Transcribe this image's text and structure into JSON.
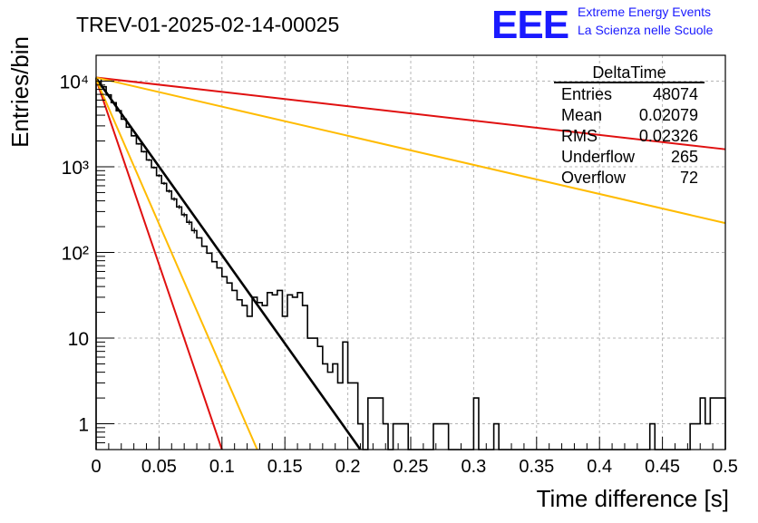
{
  "chart_data": {
    "type": "histogram",
    "title": "TREV-01-2025-02-14-00025",
    "xlabel": "Time difference [s]",
    "ylabel": "Entries/bin",
    "xlim": [
      0,
      0.5
    ],
    "ylim": [
      0.5,
      20000
    ],
    "yscale": "log",
    "grid": true,
    "x_ticks": [
      "0",
      "0.05",
      "0.1",
      "0.15",
      "0.2",
      "0.25",
      "0.3",
      "0.35",
      "0.4",
      "0.45",
      "0.5"
    ],
    "x_tick_values": [
      0,
      0.05,
      0.1,
      0.15,
      0.2,
      0.25,
      0.3,
      0.35,
      0.4,
      0.45,
      0.5
    ],
    "y_ticks": [
      "1",
      "10",
      "10²",
      "10³",
      "10⁴"
    ],
    "y_tick_values": [
      1,
      10,
      100,
      1000,
      10000
    ],
    "bin_width": 0.004,
    "bins": [
      [
        0.0,
        10800
      ],
      [
        0.004,
        8600
      ],
      [
        0.008,
        6900
      ],
      [
        0.012,
        5600
      ],
      [
        0.016,
        4500
      ],
      [
        0.02,
        3600
      ],
      [
        0.024,
        2900
      ],
      [
        0.028,
        2300
      ],
      [
        0.032,
        1850
      ],
      [
        0.036,
        1500
      ],
      [
        0.04,
        1200
      ],
      [
        0.044,
        980
      ],
      [
        0.048,
        790
      ],
      [
        0.052,
        640
      ],
      [
        0.056,
        520
      ],
      [
        0.06,
        420
      ],
      [
        0.064,
        340
      ],
      [
        0.068,
        275
      ],
      [
        0.072,
        225
      ],
      [
        0.076,
        180
      ],
      [
        0.08,
        148
      ],
      [
        0.084,
        118
      ],
      [
        0.088,
        98
      ],
      [
        0.092,
        78
      ],
      [
        0.096,
        66
      ],
      [
        0.1,
        52
      ],
      [
        0.104,
        44
      ],
      [
        0.108,
        36
      ],
      [
        0.112,
        28
      ],
      [
        0.116,
        24
      ],
      [
        0.12,
        18
      ],
      [
        0.124,
        30
      ],
      [
        0.128,
        26
      ],
      [
        0.132,
        24
      ],
      [
        0.136,
        34
      ],
      [
        0.14,
        32
      ],
      [
        0.144,
        36
      ],
      [
        0.148,
        18
      ],
      [
        0.152,
        32
      ],
      [
        0.156,
        30
      ],
      [
        0.16,
        34
      ],
      [
        0.164,
        24
      ],
      [
        0.168,
        10
      ],
      [
        0.172,
        10
      ],
      [
        0.176,
        8
      ],
      [
        0.18,
        5
      ],
      [
        0.184,
        4
      ],
      [
        0.188,
        5
      ],
      [
        0.192,
        3
      ],
      [
        0.196,
        9
      ],
      [
        0.2,
        3
      ],
      [
        0.204,
        3
      ],
      [
        0.208,
        1
      ],
      [
        0.212,
        0
      ],
      [
        0.216,
        2
      ],
      [
        0.22,
        2
      ],
      [
        0.224,
        2
      ],
      [
        0.228,
        1
      ],
      [
        0.232,
        0
      ],
      [
        0.236,
        1
      ],
      [
        0.24,
        1
      ],
      [
        0.244,
        1
      ],
      [
        0.248,
        0
      ],
      [
        0.252,
        0
      ],
      [
        0.256,
        0
      ],
      [
        0.26,
        0
      ],
      [
        0.264,
        0
      ],
      [
        0.268,
        1
      ],
      [
        0.272,
        1
      ],
      [
        0.276,
        1
      ],
      [
        0.28,
        0
      ],
      [
        0.284,
        0
      ],
      [
        0.288,
        0
      ],
      [
        0.292,
        0
      ],
      [
        0.296,
        0
      ],
      [
        0.3,
        2
      ],
      [
        0.304,
        0
      ],
      [
        0.308,
        0
      ],
      [
        0.312,
        0
      ],
      [
        0.316,
        1
      ],
      [
        0.32,
        0
      ],
      [
        0.324,
        0
      ],
      [
        0.328,
        0
      ],
      [
        0.332,
        0
      ],
      [
        0.336,
        0
      ],
      [
        0.34,
        0
      ],
      [
        0.344,
        0
      ],
      [
        0.348,
        0
      ],
      [
        0.352,
        0
      ],
      [
        0.356,
        0
      ],
      [
        0.36,
        0
      ],
      [
        0.364,
        0
      ],
      [
        0.368,
        0
      ],
      [
        0.372,
        0
      ],
      [
        0.376,
        0
      ],
      [
        0.38,
        0
      ],
      [
        0.384,
        0
      ],
      [
        0.388,
        0
      ],
      [
        0.392,
        0
      ],
      [
        0.396,
        0
      ],
      [
        0.4,
        0
      ],
      [
        0.404,
        0
      ],
      [
        0.408,
        0
      ],
      [
        0.412,
        0
      ],
      [
        0.416,
        0
      ],
      [
        0.42,
        0
      ],
      [
        0.424,
        0
      ],
      [
        0.428,
        0
      ],
      [
        0.432,
        0
      ],
      [
        0.436,
        0
      ],
      [
        0.44,
        1
      ],
      [
        0.444,
        0
      ],
      [
        0.448,
        0
      ],
      [
        0.452,
        0
      ],
      [
        0.456,
        0
      ],
      [
        0.46,
        0
      ],
      [
        0.464,
        0
      ],
      [
        0.468,
        0
      ],
      [
        0.472,
        1
      ],
      [
        0.476,
        1
      ],
      [
        0.48,
        2
      ],
      [
        0.484,
        1
      ],
      [
        0.488,
        2
      ],
      [
        0.492,
        2
      ],
      [
        0.496,
        2
      ]
    ],
    "fits": [
      {
        "color": "#000000",
        "x": [
          0.0,
          0.21
        ],
        "y": [
          10800,
          0.48
        ]
      },
      {
        "color": "#e01010",
        "x": [
          0.0,
          0.5
        ],
        "y": [
          11000,
          1600
        ]
      },
      {
        "color": "#ffbb00",
        "x": [
          0.0,
          0.5
        ],
        "y": [
          11000,
          220
        ]
      },
      {
        "color": "#e01010",
        "x": [
          0.0,
          0.1
        ],
        "y": [
          10500,
          0.48
        ]
      },
      {
        "color": "#ffbb00",
        "x": [
          0.0,
          0.128
        ],
        "y": [
          10500,
          0.48
        ]
      }
    ],
    "stats": {
      "title": "DeltaTime",
      "rows": [
        {
          "label": "Entries",
          "value": "48074"
        },
        {
          "label": "Mean",
          "value": "0.02079"
        },
        {
          "label": "RMS",
          "value": "0.02326"
        },
        {
          "label": "Underflow",
          "value": "265"
        },
        {
          "label": "Overflow",
          "value": "72"
        }
      ]
    }
  },
  "logo": {
    "text": "EEE",
    "line1": "Extreme Energy Events",
    "line2": "La Scienza nelle Scuole",
    "color": "#1a1aff"
  }
}
